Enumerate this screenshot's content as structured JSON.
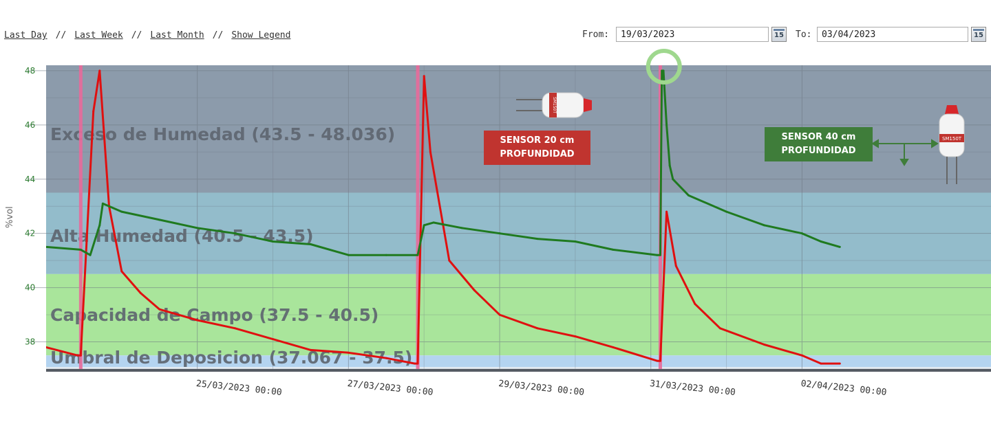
{
  "toolbar": {
    "last_day": "Last Day",
    "last_week": "Last Week",
    "last_month": "Last Month",
    "show_legend": "Show Legend",
    "separator": "//",
    "from_label": "From:",
    "from_value": "19/03/2023",
    "to_label": "To:",
    "to_value": "03/04/2023",
    "calendar_day": "15"
  },
  "annotations": {
    "sensor_20": [
      "SENSOR 20 cm",
      "PROFUNDIDAD"
    ],
    "sensor_40": [
      "SENSOR 40 cm",
      "PROFUNDIDAD"
    ],
    "sensor_model": "SM150T"
  },
  "colors": {
    "sensor_20_line": "#e01010",
    "sensor_40_line": "#1f7a1f",
    "irrigation_marker": "#e86a9a",
    "band_excess": "#8c9bab",
    "band_high": "#93bccb",
    "band_field": "#a9e59b",
    "band_deficit": "#b4d4f0",
    "callout_red": "#c0342f",
    "callout_green": "#3f7d3a",
    "highlight_ring": "#9fd88e"
  },
  "chart_data": {
    "type": "line",
    "ylabel": "%vol",
    "ylim": [
      37,
      48.2
    ],
    "yticks": [
      "48",
      "46",
      "44",
      "42",
      "40",
      "38"
    ],
    "xlim": [
      "23/03/2023 00:00",
      "04/04/2023 12:00"
    ],
    "xticks": [
      "25/03/2023 00:00",
      "27/03/2023 00:00",
      "29/03/2023 00:00",
      "31/03/2023 00:00",
      "02/04/2023 00:00"
    ],
    "grid": true,
    "bands": [
      {
        "label": "Exceso de Humedad  (43.5 - 48.036)",
        "from": 43.5,
        "to": 48.036
      },
      {
        "label": "Alta Humedad (40.5 - 43.5)",
        "from": 40.5,
        "to": 43.5
      },
      {
        "label": "Capacidad de Campo (37.5 - 40.5)",
        "from": 37.5,
        "to": 40.5
      },
      {
        "label": "Umbral de Deposicion (37.067 - 37.5)",
        "from": 37.067,
        "to": 37.5
      }
    ],
    "irrigation_events": [
      "23/03/2023 11:00",
      "27/03/2023 22:00",
      "31/03/2023 03:00"
    ],
    "series": [
      {
        "x": [
          "23/03/2023 00:00",
          "23/03/2023 10:00",
          "23/03/2023 11:00",
          "23/03/2023 15:00",
          "23/03/2023 17:00",
          "23/03/2023 20:00",
          "24/03/2023 00:00",
          "24/03/2023 06:00",
          "24/03/2023 12:00",
          "25/03/2023 00:00",
          "25/03/2023 12:00",
          "26/03/2023 00:00",
          "26/03/2023 12:00",
          "27/03/2023 00:00",
          "27/03/2023 12:00",
          "27/03/2023 21:00",
          "27/03/2023 22:00",
          "28/03/2023 00:00",
          "28/03/2023 02:00",
          "28/03/2023 08:00",
          "28/03/2023 16:00",
          "29/03/2023 00:00",
          "29/03/2023 12:00",
          "30/03/2023 00:00",
          "30/03/2023 12:00",
          "31/03/2023 02:00",
          "31/03/2023 03:00",
          "31/03/2023 05:00",
          "31/03/2023 08:00",
          "31/03/2023 14:00",
          "31/03/2023 22:00",
          "01/04/2023 12:00",
          "02/04/2023 00:00",
          "02/04/2023 06:00",
          "02/04/2023 12:00"
        ],
        "values": [
          37.8,
          37.5,
          37.5,
          46.5,
          48.0,
          43.0,
          40.6,
          39.8,
          39.2,
          38.8,
          38.5,
          38.1,
          37.7,
          37.6,
          37.4,
          37.2,
          37.2,
          47.8,
          45.0,
          41.0,
          39.9,
          39.0,
          38.5,
          38.2,
          37.8,
          37.3,
          37.3,
          42.8,
          40.8,
          39.4,
          38.5,
          37.9,
          37.5,
          37.2,
          37.2
        ]
      },
      {
        "x": [
          "23/03/2023 00:00",
          "23/03/2023 11:00",
          "23/03/2023 14:00",
          "23/03/2023 17:00",
          "23/03/2023 18:00",
          "24/03/2023 00:00",
          "24/03/2023 12:00",
          "25/03/2023 00:00",
          "25/03/2023 12:00",
          "26/03/2023 00:00",
          "26/03/2023 12:00",
          "27/03/2023 00:00",
          "27/03/2023 12:00",
          "27/03/2023 22:00",
          "28/03/2023 00:00",
          "28/03/2023 03:00",
          "28/03/2023 12:00",
          "29/03/2023 00:00",
          "29/03/2023 12:00",
          "30/03/2023 00:00",
          "30/03/2023 12:00",
          "31/03/2023 02:00",
          "31/03/2023 03:00",
          "31/03/2023 03:30",
          "31/03/2023 04:00",
          "31/03/2023 05:00",
          "31/03/2023 06:00",
          "31/03/2023 07:00",
          "31/03/2023 12:00",
          "01/04/2023 00:00",
          "01/04/2023 12:00",
          "02/04/2023 00:00",
          "02/04/2023 06:00",
          "02/04/2023 12:00"
        ],
        "values": [
          41.5,
          41.4,
          41.2,
          42.3,
          43.1,
          42.8,
          42.5,
          42.2,
          42.0,
          41.7,
          41.6,
          41.2,
          41.2,
          41.2,
          42.3,
          42.4,
          42.2,
          42.0,
          41.8,
          41.7,
          41.4,
          41.2,
          41.2,
          48.0,
          48.0,
          46.0,
          44.5,
          44.0,
          43.4,
          42.8,
          42.3,
          42.0,
          41.7,
          41.5
        ]
      }
    ]
  }
}
